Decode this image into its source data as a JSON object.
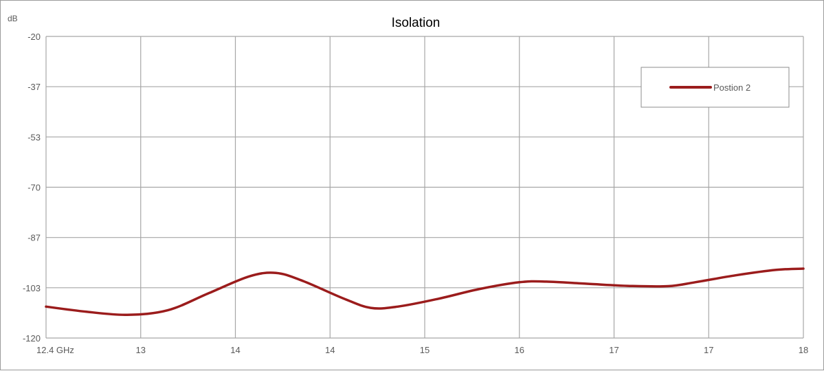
{
  "chart_data": {
    "type": "line",
    "title": "Isolation",
    "ylabel": "dB",
    "xlabel": "",
    "ylim": [
      -120,
      -20
    ],
    "y_ticks": [
      "-20",
      "-37",
      "-53",
      "-70",
      "-87",
      "-103",
      "-120"
    ],
    "x_ticks": [
      "12.4 GHz",
      "13",
      "14",
      "14",
      "15",
      "16",
      "17",
      "17",
      "18"
    ],
    "grid": true,
    "legend_position": "top-right",
    "series": [
      {
        "name": "Postion 2",
        "color": "#9b1c1c",
        "x": [
          12.4,
          12.7,
          13.0,
          13.3,
          13.6,
          13.9,
          14.1,
          14.3,
          14.6,
          14.8,
          15.0,
          15.3,
          15.6,
          15.9,
          16.1,
          16.4,
          16.7,
          17.0,
          17.2,
          17.5,
          17.8,
          18.0
        ],
        "y": [
          -109.6,
          -111.3,
          -112.3,
          -110.8,
          -105.2,
          -99.6,
          -98.4,
          -101.1,
          -106.9,
          -110.0,
          -109.6,
          -107.0,
          -103.8,
          -101.5,
          -101.3,
          -102.0,
          -102.7,
          -102.8,
          -101.5,
          -99.2,
          -97.4,
          -97.0
        ]
      }
    ]
  }
}
